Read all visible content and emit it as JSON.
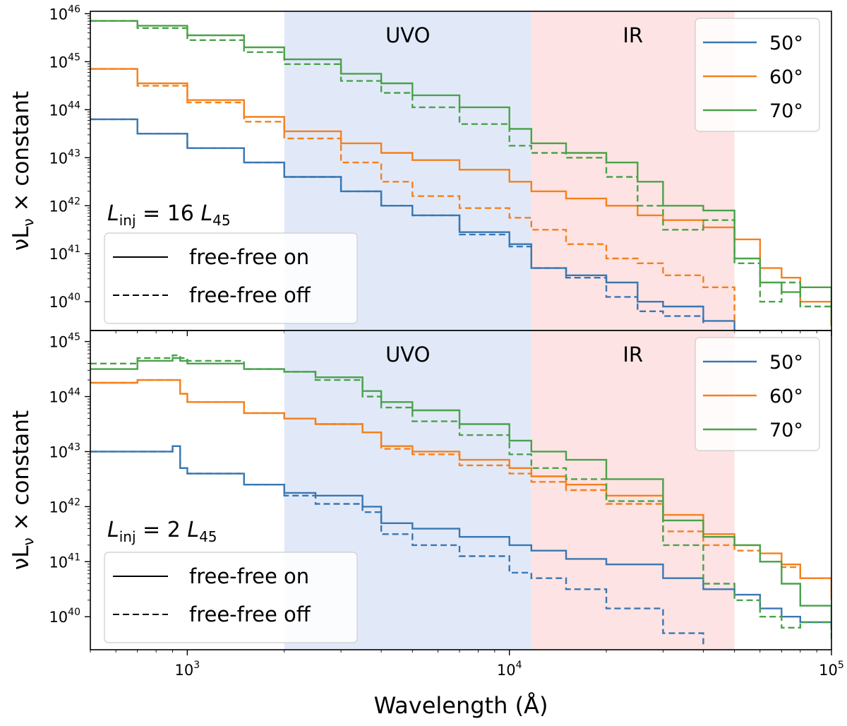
{
  "figure": {
    "xlabel": "Wavelength (Å)",
    "ylabel_main": "νL",
    "ylabel_sub": "ν",
    "ylabel_tail": " × constant",
    "xticks": [
      {
        "value": 1000,
        "base": "10",
        "exp": "3"
      },
      {
        "value": 10000,
        "base": "10",
        "exp": "4"
      },
      {
        "value": 100000,
        "base": "10",
        "exp": "5"
      }
    ],
    "bands": [
      {
        "label": "UVO",
        "x": [
          2000,
          11700
        ],
        "color": "#e1e9f9"
      },
      {
        "label": "IR",
        "x": [
          11700,
          50000
        ],
        "color": "#fde3e3"
      }
    ],
    "series_colors": {
      "50°": "#3a77b2",
      "60°": "#f5801c",
      "70°": "#4aa24a"
    }
  },
  "chart_data": [
    {
      "type": "line",
      "panel": "top",
      "annotation": {
        "L": "L",
        "sub": "inj",
        "rest": " = 16 ",
        "unit": "L",
        "unit_sub": "45"
      },
      "xscale": "log",
      "yscale": "log",
      "xlim": [
        500,
        100000
      ],
      "ylim_exp": [
        39.4,
        46.05
      ],
      "yticks": [
        {
          "value": 40,
          "base": "10",
          "exp": "40"
        },
        {
          "value": 41,
          "base": "10",
          "exp": "41"
        },
        {
          "value": 42,
          "base": "10",
          "exp": "42"
        },
        {
          "value": 43,
          "base": "10",
          "exp": "43"
        },
        {
          "value": 44,
          "base": "10",
          "exp": "44"
        },
        {
          "value": 45,
          "base": "10",
          "exp": "45"
        },
        {
          "value": 46,
          "base": "10",
          "exp": "46"
        }
      ],
      "legend_angles": [
        {
          "label": "50°",
          "color": "#3a77b2"
        },
        {
          "label": "60°",
          "color": "#f5801c"
        },
        {
          "label": "70°",
          "color": "#4aa24a"
        }
      ],
      "legend_style": [
        {
          "label": "free-free on",
          "dash": "solid"
        },
        {
          "label": "free-free off",
          "dash": "dashed"
        }
      ],
      "x": [
        500,
        700,
        1000,
        1500,
        2000,
        3000,
        4000,
        5000,
        7000,
        10000,
        11700,
        15000,
        20000,
        25000,
        30000,
        40000,
        50000,
        60000,
        70000,
        80000,
        100000
      ],
      "series": [
        {
          "name": "50°",
          "style": "on",
          "color": "#3a77b2",
          "log_values": [
            43.8,
            43.5,
            43.2,
            42.9,
            42.6,
            42.3,
            42.0,
            41.8,
            41.45,
            41.2,
            40.7,
            40.55,
            40.4,
            40.0,
            39.9,
            39.6,
            39.4,
            null,
            null,
            null,
            null
          ]
        },
        {
          "name": "50°",
          "style": "off",
          "color": "#3a77b2",
          "log_values": [
            43.8,
            43.5,
            43.2,
            42.9,
            42.6,
            42.3,
            42.0,
            41.8,
            41.4,
            41.15,
            40.7,
            40.5,
            40.1,
            39.8,
            39.7,
            39.5,
            null,
            null,
            null,
            null,
            null
          ]
        },
        {
          "name": "60°",
          "style": "on",
          "color": "#f5801c",
          "log_values": [
            44.85,
            44.55,
            44.2,
            43.85,
            43.55,
            43.3,
            43.1,
            42.95,
            42.75,
            42.5,
            42.3,
            42.15,
            42.0,
            41.8,
            41.7,
            41.55,
            41.3,
            40.7,
            40.5,
            40.0,
            39.5
          ]
        },
        {
          "name": "60°",
          "style": "off",
          "color": "#f5801c",
          "log_values": [
            44.85,
            44.5,
            44.15,
            43.75,
            43.4,
            42.9,
            42.5,
            42.2,
            41.95,
            41.75,
            41.5,
            41.2,
            40.9,
            40.8,
            40.55,
            40.3,
            39.6,
            null,
            null,
            null,
            null
          ]
        },
        {
          "name": "70°",
          "style": "on",
          "color": "#4aa24a",
          "log_values": [
            45.85,
            45.75,
            45.55,
            45.3,
            45.05,
            44.75,
            44.55,
            44.3,
            44.05,
            43.6,
            43.3,
            43.1,
            42.9,
            42.5,
            42.0,
            41.9,
            40.9,
            40.4,
            40.2,
            40.3,
            39.5
          ]
        },
        {
          "name": "70°",
          "style": "off",
          "color": "#4aa24a",
          "log_values": [
            45.85,
            45.7,
            45.45,
            45.2,
            44.95,
            44.6,
            44.35,
            44.05,
            43.7,
            43.25,
            43.1,
            43.0,
            42.6,
            42.0,
            41.5,
            41.7,
            40.8,
            40.0,
            40.4,
            39.9,
            39.5
          ]
        }
      ]
    },
    {
      "type": "line",
      "panel": "bottom",
      "annotation": {
        "L": "L",
        "sub": "inj",
        "rest": " = 2 ",
        "unit": "L",
        "unit_sub": "45"
      },
      "xscale": "log",
      "yscale": "log",
      "xlim": [
        500,
        100000
      ],
      "ylim_exp": [
        39.4,
        45.2
      ],
      "yticks": [
        {
          "value": 40,
          "base": "10",
          "exp": "40"
        },
        {
          "value": 41,
          "base": "10",
          "exp": "41"
        },
        {
          "value": 42,
          "base": "10",
          "exp": "42"
        },
        {
          "value": 43,
          "base": "10",
          "exp": "43"
        },
        {
          "value": 44,
          "base": "10",
          "exp": "44"
        },
        {
          "value": 45,
          "base": "10",
          "exp": "45"
        }
      ],
      "legend_angles": [
        {
          "label": "50°",
          "color": "#3a77b2"
        },
        {
          "label": "60°",
          "color": "#f5801c"
        },
        {
          "label": "70°",
          "color": "#4aa24a"
        }
      ],
      "legend_style": [
        {
          "label": "free-free on",
          "dash": "solid"
        },
        {
          "label": "free-free off",
          "dash": "dashed"
        }
      ],
      "x": [
        500,
        700,
        900,
        950,
        1000,
        1500,
        2000,
        2500,
        3500,
        4000,
        5000,
        7000,
        10000,
        11700,
        15000,
        20000,
        30000,
        40000,
        50000,
        60000,
        70000,
        80000,
        100000
      ],
      "series": [
        {
          "name": "50°",
          "style": "on",
          "color": "#3a77b2",
          "log_values": [
            43.0,
            43.0,
            43.1,
            42.7,
            42.6,
            42.4,
            42.25,
            42.2,
            42.0,
            41.7,
            41.6,
            41.45,
            41.3,
            41.2,
            41.05,
            40.95,
            40.7,
            40.5,
            40.4,
            40.15,
            40.0,
            39.9,
            39.75
          ]
        },
        {
          "name": "50°",
          "style": "off",
          "color": "#3a77b2",
          "log_values": [
            43.0,
            43.0,
            43.1,
            42.7,
            42.6,
            42.4,
            42.2,
            42.05,
            41.9,
            41.5,
            41.3,
            41.1,
            40.8,
            40.7,
            40.5,
            40.15,
            39.7,
            39.5,
            null,
            null,
            null,
            null,
            null
          ]
        },
        {
          "name": "60°",
          "style": "on",
          "color": "#f5801c",
          "log_values": [
            44.25,
            44.3,
            44.3,
            44.05,
            43.9,
            43.7,
            43.6,
            43.5,
            43.35,
            43.1,
            43.0,
            42.85,
            42.7,
            42.55,
            42.4,
            42.2,
            41.85,
            41.5,
            41.3,
            41.15,
            40.95,
            40.7,
            40.35
          ]
        },
        {
          "name": "60°",
          "style": "off",
          "color": "#f5801c",
          "log_values": [
            44.25,
            44.3,
            44.3,
            44.05,
            43.9,
            43.7,
            43.6,
            43.5,
            43.35,
            43.05,
            42.95,
            42.75,
            42.6,
            42.45,
            42.3,
            42.05,
            41.55,
            41.3,
            41.2,
            41.0,
            40.9,
            40.7,
            40.3
          ]
        },
        {
          "name": "70°",
          "style": "on",
          "color": "#4aa24a",
          "log_values": [
            44.5,
            44.65,
            44.7,
            44.65,
            44.6,
            44.5,
            44.45,
            44.35,
            44.1,
            43.9,
            43.75,
            43.5,
            43.2,
            43.0,
            42.85,
            42.5,
            41.75,
            41.45,
            41.3,
            41.0,
            40.6,
            40.2,
            39.8
          ]
        },
        {
          "name": "70°",
          "style": "off",
          "color": "#4aa24a",
          "log_values": [
            44.6,
            44.7,
            44.75,
            44.7,
            44.65,
            44.5,
            44.45,
            44.3,
            44.0,
            43.8,
            43.55,
            43.3,
            42.95,
            42.7,
            42.5,
            42.1,
            41.3,
            40.6,
            40.3,
            40.0,
            39.8,
            39.9,
            39.6
          ]
        }
      ]
    }
  ]
}
